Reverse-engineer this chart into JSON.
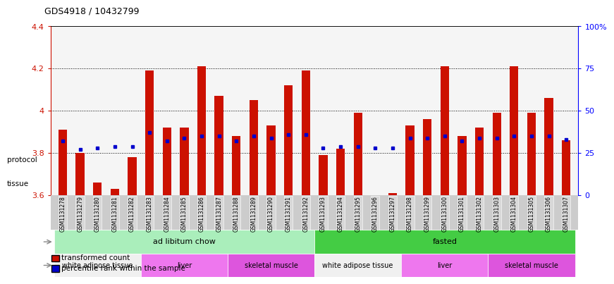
{
  "title": "GDS4918 / 10432799",
  "samples": [
    "GSM1131278",
    "GSM1131279",
    "GSM1131280",
    "GSM1131281",
    "GSM1131282",
    "GSM1131283",
    "GSM1131284",
    "GSM1131285",
    "GSM1131286",
    "GSM1131287",
    "GSM1131288",
    "GSM1131289",
    "GSM1131290",
    "GSM1131291",
    "GSM1131292",
    "GSM1131293",
    "GSM1131294",
    "GSM1131295",
    "GSM1131296",
    "GSM1131297",
    "GSM1131298",
    "GSM1131299",
    "GSM1131300",
    "GSM1131301",
    "GSM1131302",
    "GSM1131303",
    "GSM1131304",
    "GSM1131305",
    "GSM1131306",
    "GSM1131307"
  ],
  "bar_values": [
    3.91,
    3.8,
    3.66,
    3.63,
    3.78,
    4.19,
    3.92,
    3.92,
    4.21,
    4.07,
    3.88,
    4.05,
    3.93,
    4.12,
    4.19,
    3.79,
    3.82,
    3.99,
    3.6,
    3.61,
    3.93,
    3.96,
    4.21,
    3.88,
    3.92,
    3.99,
    4.21,
    3.99,
    4.06,
    3.86
  ],
  "percentile_values": [
    32,
    27,
    28,
    29,
    29,
    37,
    32,
    34,
    35,
    35,
    32,
    35,
    34,
    36,
    36,
    28,
    29,
    29,
    28,
    28,
    34,
    34,
    35,
    32,
    34,
    34,
    35,
    35,
    35,
    33
  ],
  "ymin": 3.6,
  "ymax": 4.4,
  "bar_color": "#cc1100",
  "dot_color": "#0000cc",
  "bg_color": "#ffffff",
  "strip_bg": "#cccccc",
  "protocol_groups": [
    {
      "label": "ad libitum chow",
      "start": 0,
      "end": 15,
      "color": "#aaeebb"
    },
    {
      "label": "fasted",
      "start": 15,
      "end": 30,
      "color": "#44cc44"
    }
  ],
  "tissue_groups": [
    {
      "label": "white adipose tissue",
      "start": 0,
      "end": 5,
      "color": "#f0f0f0"
    },
    {
      "label": "liver",
      "start": 5,
      "end": 10,
      "color": "#ee77ee"
    },
    {
      "label": "skeletal muscle",
      "start": 10,
      "end": 15,
      "color": "#dd55dd"
    },
    {
      "label": "white adipose tissue",
      "start": 15,
      "end": 20,
      "color": "#f0f0f0"
    },
    {
      "label": "liver",
      "start": 20,
      "end": 25,
      "color": "#ee77ee"
    },
    {
      "label": "skeletal muscle",
      "start": 25,
      "end": 30,
      "color": "#dd55dd"
    }
  ],
  "yticks": [
    3.6,
    3.8,
    4.0,
    4.2,
    4.4
  ],
  "ytick_labels": [
    "3.6",
    "3.8",
    "4",
    "4.2",
    "4.4"
  ],
  "pct_ticks": [
    0,
    25,
    50,
    75,
    100
  ],
  "pct_labels": [
    "0",
    "25",
    "50",
    "75",
    "100%"
  ],
  "grid_vals": [
    3.8,
    4.0,
    4.2
  ],
  "legend_items": [
    {
      "label": "transformed count",
      "color": "#cc1100"
    },
    {
      "label": "percentile rank within the sample",
      "color": "#0000cc"
    }
  ]
}
